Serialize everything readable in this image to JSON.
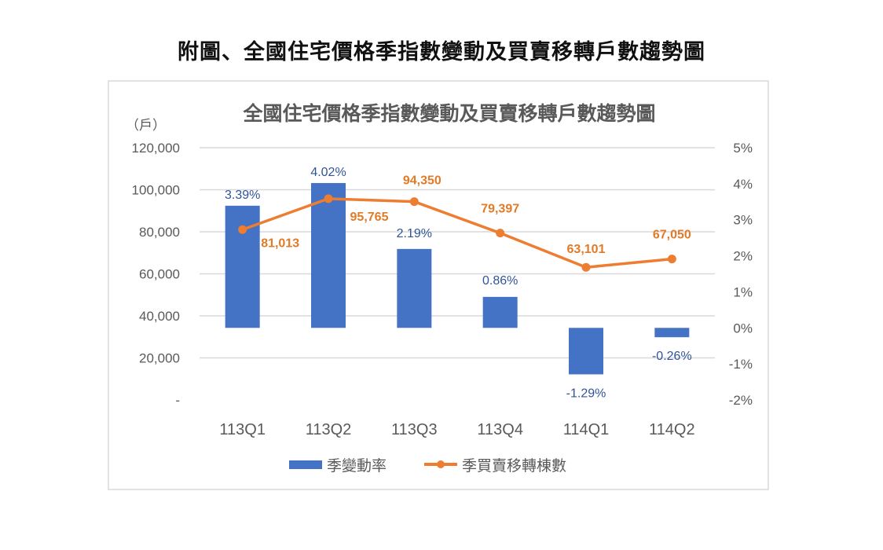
{
  "figure_title": "附圖、全國住宅價格季指數變動及買賣移轉戶數趨勢圖",
  "chart_data": {
    "type": "bar+line",
    "title": "全國住宅價格季指數變動及買賣移轉戶數趨勢圖",
    "y_left_unit": "（戶）",
    "categories": [
      "113Q1",
      "113Q2",
      "113Q3",
      "113Q4",
      "114Q1",
      "114Q2"
    ],
    "y_left": {
      "range": [
        0,
        120000
      ],
      "ticks": [
        "-",
        "20,000",
        "40,000",
        "60,000",
        "80,000",
        "100,000",
        "120,000"
      ]
    },
    "y_right": {
      "range": [
        -2,
        5
      ],
      "ticks": [
        "-2%",
        "-1%",
        "0%",
        "1%",
        "2%",
        "3%",
        "4%",
        "5%"
      ]
    },
    "grid": true,
    "legend_position": "bottom",
    "series": [
      {
        "name": "季變動率",
        "type": "bar",
        "axis": "right",
        "color": "#4472c4",
        "values": [
          3.39,
          4.02,
          2.19,
          0.86,
          -1.29,
          -0.26
        ],
        "labels": [
          "3.39%",
          "4.02%",
          "2.19%",
          "0.86%",
          "-1.29%",
          "-0.26%"
        ]
      },
      {
        "name": "季買賣移轉棟數",
        "type": "line",
        "axis": "left",
        "color": "#ed7d31",
        "values": [
          81013,
          95765,
          94350,
          79397,
          63101,
          67050
        ],
        "labels": [
          "81,013",
          "95,765",
          "94,350",
          "79,397",
          "63,101",
          "67,050"
        ]
      }
    ]
  }
}
